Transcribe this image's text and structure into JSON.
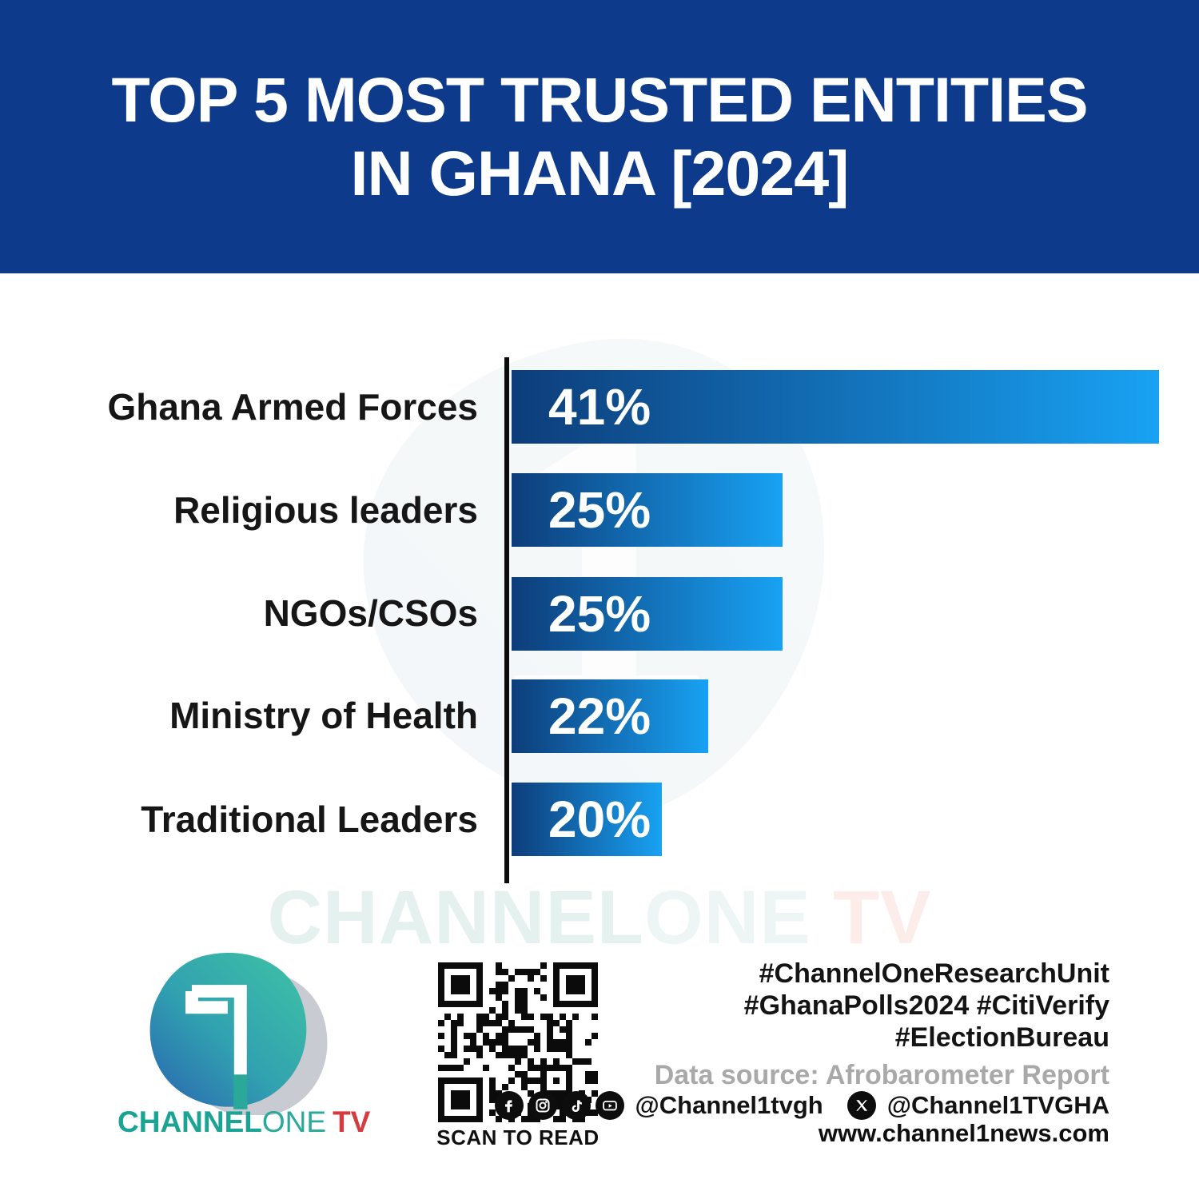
{
  "header": {
    "title_line1": "TOP 5 MOST TRUSTED ENTITIES",
    "title_line2": "IN GHANA [2024]"
  },
  "chart_data": {
    "type": "bar",
    "orientation": "horizontal",
    "title": "Top 5 most trusted entities in Ghana [2024]",
    "categories": [
      "Ghana Armed Forces",
      "Religious leaders",
      "NGOs/CSOs",
      "Ministry of Health",
      "Traditional Leaders"
    ],
    "values": [
      41,
      25,
      25,
      22,
      20
    ],
    "value_labels": [
      "41%",
      "25%",
      "25%",
      "22%",
      "20%"
    ],
    "xlabel": "",
    "ylabel": "",
    "grid": false,
    "legend": false,
    "bar_display_width_pct_of_max": [
      100,
      41.9,
      41.9,
      30.4,
      23.2
    ],
    "layout_note": "bar lengths in the source graphic are not strictly proportional to the stated percentages",
    "bar_gradient": [
      "#0d3d7a",
      "#18a2f3"
    ]
  },
  "watermark": {
    "part1": "CHANNEL",
    "part2": "ONE",
    "part3": " TV"
  },
  "footer": {
    "logo": {
      "part_channel": "CHANNEL",
      "part_one": "ONE",
      "part_tv": "TV",
      "glyph": "1"
    },
    "qr_caption": "SCAN TO READ",
    "hashtags": [
      "#ChannelOneResearchUnit",
      "#GhanaPolls2024 #CitiVerify",
      "#ElectionBureau"
    ],
    "data_source": "Data source: Afrobarometer Report",
    "social": {
      "icons": [
        "facebook-icon",
        "instagram-icon",
        "tiktok-icon",
        "youtube-icon"
      ],
      "handle1": "@Channel1tvgh",
      "x_icon": "x-twitter-icon",
      "handle2": "@Channel1TVGHA",
      "website": "www.channel1news.com"
    }
  },
  "colors": {
    "header_bg": "#0e3a8c",
    "bar_start": "#0d3d7a",
    "bar_end": "#18a2f3",
    "axis": "#0c0c0c",
    "teal": "#1ba393",
    "red": "#d63a3f",
    "source_gray": "#a9a9a9"
  }
}
